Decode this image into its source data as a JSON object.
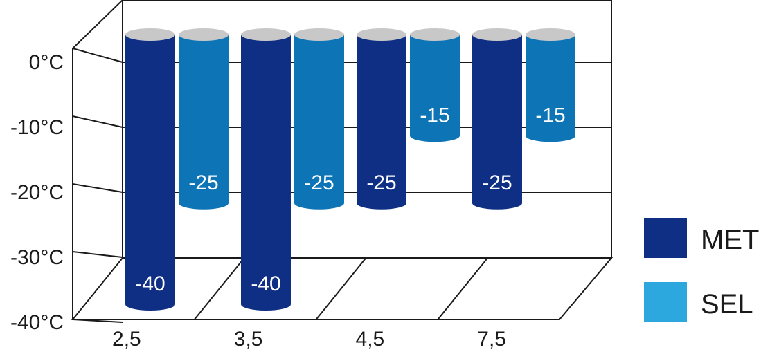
{
  "chart_data": {
    "type": "bar",
    "categories": [
      "2,5",
      "3,5",
      "4,5",
      "7,5"
    ],
    "series": [
      {
        "name": "MET",
        "values": [
          -40,
          -40,
          -25,
          -25
        ],
        "color": "#0e2f84"
      },
      {
        "name": "SEL",
        "values": [
          -25,
          -25,
          -15,
          -15
        ],
        "color": "#0d74b6"
      }
    ],
    "value_labels": {
      "MET": [
        "-40",
        "-40",
        "-25",
        "-25"
      ],
      "SEL": [
        "-25",
        "-25",
        "-15",
        "-15"
      ]
    },
    "legend_colors": {
      "MET": "#0e2f84",
      "SEL": "#2da8de"
    },
    "yticks": [
      "0°C",
      "-10°C",
      "-20°C",
      "-30°C",
      "-40°C"
    ],
    "ytick_values": [
      0,
      -10,
      -20,
      -30,
      -40
    ],
    "ylim": [
      -40,
      0
    ],
    "legend_position": "right",
    "grid": true,
    "style": "3d-cylinder",
    "cap_color": "#c8c8c8",
    "title": "",
    "xlabel": "",
    "ylabel": ""
  }
}
